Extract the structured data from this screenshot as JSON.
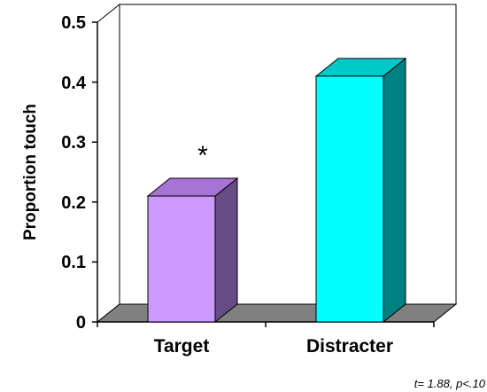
{
  "chart_data": {
    "type": "bar",
    "categories": [
      "Target",
      "Distracter"
    ],
    "values": [
      0.21,
      0.41
    ],
    "ylabel": "Proportion touch",
    "ylim": [
      0,
      0.5
    ],
    "yticks": [
      "0",
      "0.1",
      "0.2",
      "0.3",
      "0.4",
      "0.5"
    ],
    "annotations": {
      "significance_marker": "*",
      "footnote": "t= 1.88,  p<.10"
    },
    "colors": {
      "target_front": "#cc99ff",
      "target_top": "#a873d6",
      "target_side": "#664c84",
      "distracter_front": "#00ffff",
      "distracter_top": "#00c9c9",
      "distracter_side": "#008080",
      "floor": "#808080"
    }
  }
}
